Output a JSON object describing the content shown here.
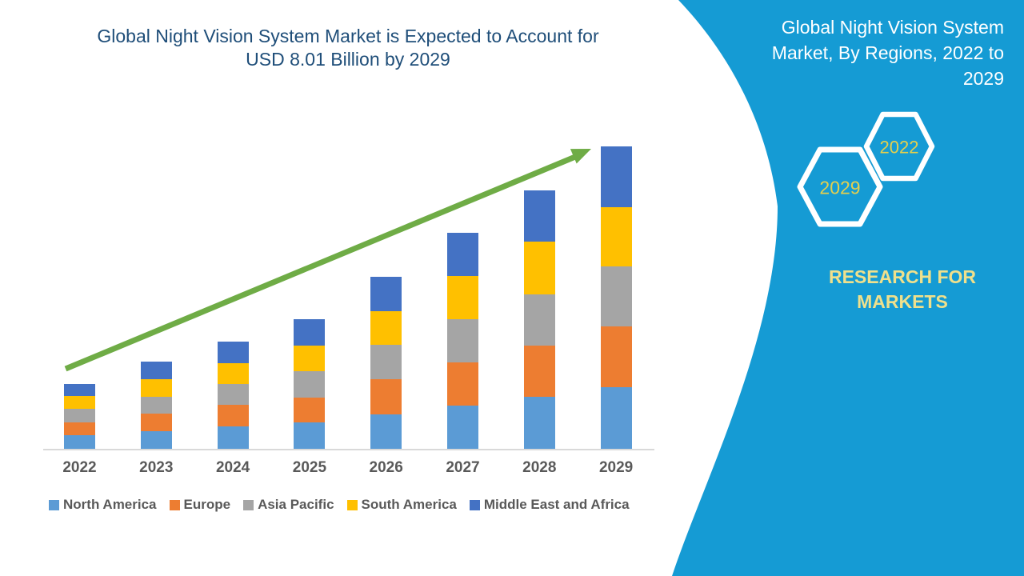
{
  "chart": {
    "title_line1": "Global Night Vision System Market is Expected to Account for",
    "title_line2": "USD 8.01 Billion by 2029",
    "title_color": "#1F4E79"
  },
  "chart_data": {
    "type": "bar",
    "stacked": true,
    "unit": "USD Billion",
    "title": "Global Night Vision System Market is Expected to Account for USD 8.01 Billion by 2029",
    "xlabel": "",
    "ylabel": "",
    "categories": [
      "2022",
      "2023",
      "2024",
      "2025",
      "2026",
      "2027",
      "2028",
      "2029"
    ],
    "series": [
      {
        "name": "North America",
        "color": "#5B9BD5",
        "values": [
          0.36,
          0.47,
          0.6,
          0.7,
          0.92,
          1.14,
          1.38,
          1.63
        ]
      },
      {
        "name": "Europe",
        "color": "#ED7D31",
        "values": [
          0.34,
          0.46,
          0.57,
          0.65,
          0.92,
          1.14,
          1.35,
          1.61
        ]
      },
      {
        "name": "Asia Pacific",
        "color": "#A5A5A5",
        "values": [
          0.36,
          0.44,
          0.55,
          0.71,
          0.91,
          1.16,
          1.36,
          1.58
        ]
      },
      {
        "name": "South America",
        "color": "#FFC000",
        "values": [
          0.34,
          0.47,
          0.55,
          0.68,
          0.89,
          1.13,
          1.39,
          1.57
        ]
      },
      {
        "name": "Middle East and Africa",
        "color": "#4472C4",
        "values": [
          0.32,
          0.47,
          0.57,
          0.69,
          0.91,
          1.14,
          1.36,
          1.62
        ]
      }
    ],
    "totals": [
      1.72,
      2.31,
      2.84,
      3.43,
      4.55,
      5.71,
      6.84,
      8.01
    ],
    "y_axis_shown": false,
    "grid": false,
    "legend_position": "bottom",
    "axis_line_color": "#D9D9D9",
    "tick_label_color": "#595959",
    "trend_arrow": {
      "color": "#6FAC46",
      "direction": "up-right"
    }
  },
  "panel": {
    "background": "#159BD4",
    "title_line1": "Global Night Vision System",
    "title_line2": "Market, By Regions, 2022 to",
    "title_line3": "2029",
    "title_color": "#FFFFFF",
    "hexagon_stroke": "#FFFFFF",
    "hexagon_text_color": "#E4CF4D",
    "hexagons": [
      {
        "label": "2029"
      },
      {
        "label": "2022"
      }
    ],
    "brand_line1": "RESEARCH FOR",
    "brand_line2": "MARKETS",
    "brand_color": "#EFE08C"
  }
}
